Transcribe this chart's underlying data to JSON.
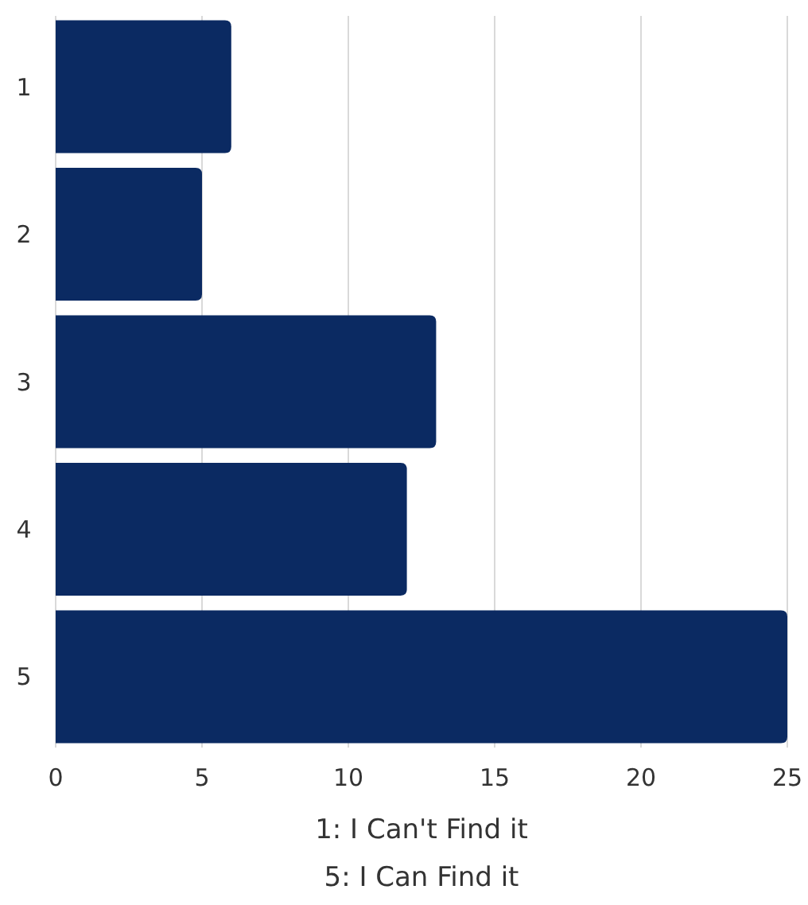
{
  "chart_data": {
    "type": "bar",
    "orientation": "horizontal",
    "categories": [
      "1",
      "2",
      "3",
      "4",
      "5"
    ],
    "values": [
      6,
      5,
      13,
      12,
      25
    ],
    "color": "#0b2a62",
    "xlim": [
      0,
      25
    ],
    "xticks": [
      0,
      5,
      10,
      15,
      20,
      25
    ],
    "grid": "x",
    "xlabel": "1: I Can't Find it\n5: I Can Find it"
  }
}
